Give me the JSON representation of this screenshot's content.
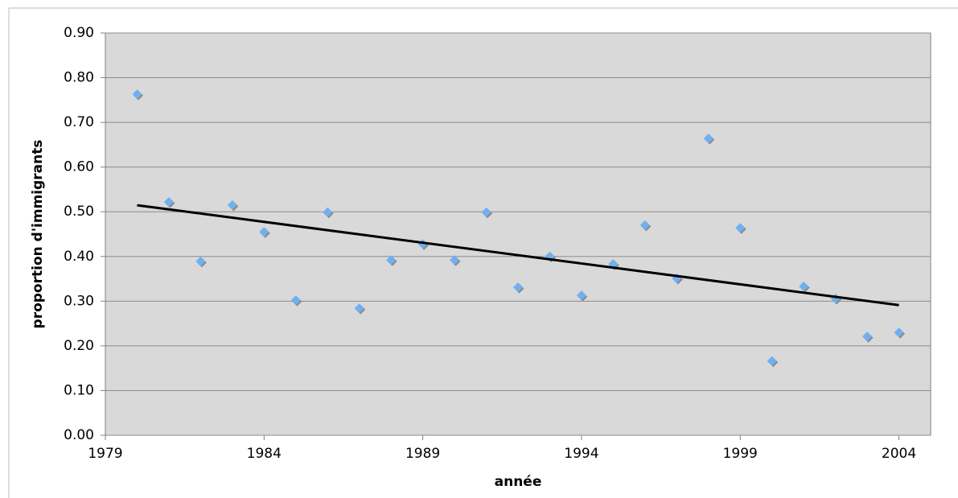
{
  "chart_data": {
    "type": "scatter",
    "x_label": "année",
    "y_label": "proportion d'immigrants",
    "series": [
      {
        "color": "#6fb0f0",
        "x": [
          1980,
          1981,
          1982,
          1983,
          1984,
          1985,
          1986,
          1987,
          1988,
          1989,
          1990,
          1991,
          1992,
          1993,
          1994,
          1995,
          1996,
          1997,
          1998,
          1999,
          2000,
          2001,
          2002,
          2003,
          2004
        ],
        "values": [
          0.763,
          0.522,
          0.389,
          0.515,
          0.455,
          0.302,
          0.499,
          0.284,
          0.392,
          0.428,
          0.392,
          0.499,
          0.331,
          0.4,
          0.313,
          0.383,
          0.47,
          0.351,
          0.664,
          0.464,
          0.166,
          0.333,
          0.306,
          0.221,
          0.23
        ]
      }
    ],
    "trendline": true,
    "trendline_color": "#000000",
    "xlim": [
      1979,
      2005
    ],
    "xticks": [
      1979,
      1984,
      1989,
      1994,
      1999,
      2004
    ],
    "ylim": [
      0,
      0.9
    ],
    "yticks": [
      {
        "value": 0,
        "label": "0.00"
      },
      {
        "value": 0.1,
        "label": "0.10"
      },
      {
        "value": 0.2,
        "label": "0.20"
      },
      {
        "value": 0.3,
        "label": "0.30"
      },
      {
        "value": 0.4,
        "label": "0.40"
      },
      {
        "value": 0.5,
        "label": "0.50"
      },
      {
        "value": 0.6,
        "label": "0.60"
      },
      {
        "value": 0.7,
        "label": "0.70"
      },
      {
        "value": 0.8,
        "label": "0.80"
      },
      {
        "value": 0.9,
        "label": "0.90"
      }
    ],
    "grid": true,
    "plot_background": "#d9d9d9"
  }
}
